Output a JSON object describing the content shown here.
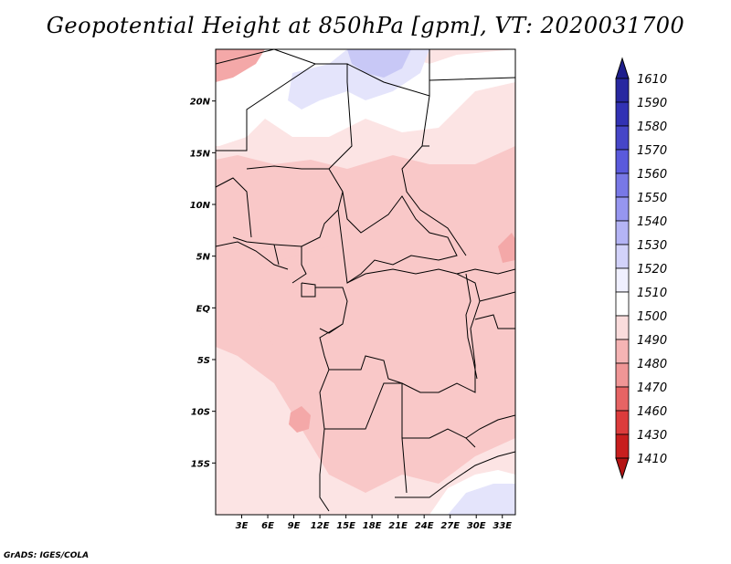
{
  "title": "Geopotential Height at 850hPa [gpm], VT: 2020031700",
  "credit": "GrADS: IGES/COLA",
  "map": {
    "lon_range": [
      0,
      34.5
    ],
    "lat_range": [
      -20,
      25
    ],
    "x_ticks": [
      "3E",
      "6E",
      "9E",
      "12E",
      "15E",
      "18E",
      "21E",
      "24E",
      "27E",
      "30E",
      "33E"
    ],
    "x_tick_values": [
      3,
      6,
      9,
      12,
      15,
      18,
      21,
      24,
      27,
      30,
      33
    ],
    "y_ticks": [
      "20N",
      "15N",
      "10N",
      "5N",
      "EQ",
      "5S",
      "10S",
      "15S"
    ],
    "y_tick_values": [
      20,
      15,
      10,
      5,
      0,
      -5,
      -10,
      -15
    ]
  },
  "colorbar": {
    "labels": [
      "1610",
      "1590",
      "1580",
      "1570",
      "1560",
      "1550",
      "1540",
      "1530",
      "1520",
      "1510",
      "1500",
      "1490",
      "1480",
      "1470",
      "1460",
      "1430",
      "1410"
    ],
    "colors": [
      "#1e1e8c",
      "#2828a0",
      "#3232b4",
      "#4646c8",
      "#5a5adc",
      "#7878e6",
      "#9696f0",
      "#b4b4f5",
      "#d2d2fa",
      "#f0f0ff",
      "#ffffff",
      "#fadcdc",
      "#f5b4b4",
      "#f09696",
      "#e66464",
      "#dc3c3c",
      "#c81e1e",
      "#b41414"
    ]
  },
  "legend": {
    "lt1510": "#fce4e4",
    "lt1500": "#f9c8c8",
    "lt1490": "#f4a8a8",
    "lt1480": "#ee8c8c",
    "b1520": "#e4e4fb",
    "b1530": "#c8c8f6",
    "white": "#ffffff"
  }
}
